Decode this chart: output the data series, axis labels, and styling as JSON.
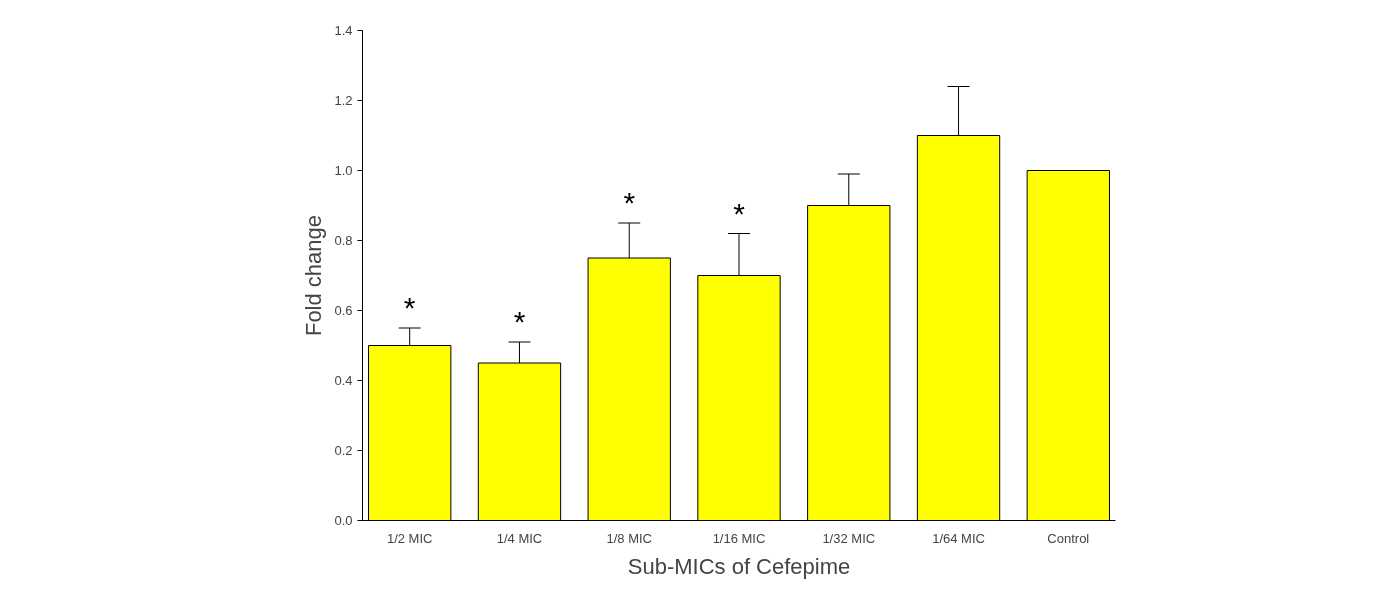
{
  "chart_data": {
    "type": "bar",
    "xlabel": "Sub-MICs of Cefepime",
    "ylabel": "Fold change",
    "categories": [
      "1/2 MIC",
      "1/4 MIC",
      "1/8 MIC",
      "1/16 MIC",
      "1/32 MIC",
      "1/64 MIC",
      "Control"
    ],
    "values": [
      0.5,
      0.45,
      0.75,
      0.7,
      0.9,
      1.1,
      1.0
    ],
    "errors": [
      [
        0.5,
        0.55
      ],
      [
        0.45,
        0.51
      ],
      [
        0.75,
        0.85
      ],
      [
        0.7,
        0.82
      ],
      [
        0.9,
        0.99
      ],
      [
        1.1,
        1.24
      ],
      null
    ],
    "color": "#ffff00",
    "ylim": [
      0,
      1.4
    ],
    "yticks": [
      {
        "value": 0,
        "label": "0.0"
      },
      {
        "value": 0.2,
        "label": "0.2"
      },
      {
        "value": 0.4,
        "label": "0.4"
      },
      {
        "value": 0.6,
        "label": "0.6"
      },
      {
        "value": 0.8,
        "label": "0.8"
      },
      {
        "value": 1.0,
        "label": "1.0"
      },
      {
        "value": 1.2,
        "label": "1.2"
      },
      {
        "value": 1.4,
        "label": "1.4"
      }
    ],
    "grid": false,
    "annotations": [
      "*",
      "*",
      "*",
      "*"
    ]
  }
}
